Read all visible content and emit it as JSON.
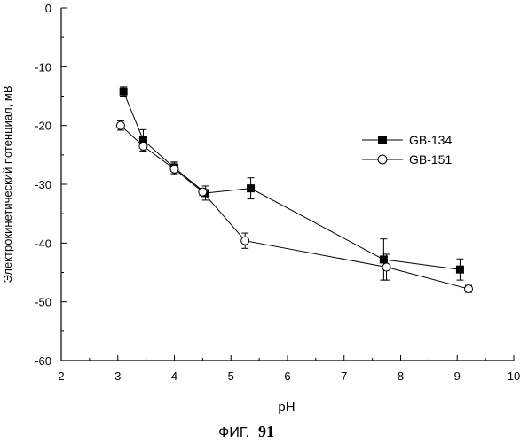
{
  "chart_data": {
    "type": "line",
    "xlabel": "pH",
    "ylabel": "Электрокинетический потенциал, мВ",
    "xlim": [
      2,
      10
    ],
    "ylim": [
      -60,
      0
    ],
    "xticks": [
      "2",
      "3",
      "4",
      "5",
      "6",
      "7",
      "8",
      "9",
      "10"
    ],
    "yticks": [
      "0",
      "-10",
      "-20",
      "-30",
      "-40",
      "-50",
      "-60"
    ],
    "legend_position": "right",
    "series": [
      {
        "name": "GB-134",
        "marker": "filled-square",
        "x": [
          3.1,
          3.45,
          4.0,
          4.55,
          5.35,
          7.7,
          9.05
        ],
        "y": [
          -14.2,
          -22.5,
          -27.2,
          -31.5,
          -30.7,
          -42.8,
          -44.5
        ],
        "err": [
          0.8,
          1.8,
          1.0,
          1.2,
          1.8,
          3.5,
          1.8
        ]
      },
      {
        "name": "GB-151",
        "marker": "open-circle",
        "x": [
          3.05,
          3.45,
          4.0,
          4.5,
          5.25,
          7.75,
          9.2
        ],
        "y": [
          -20.0,
          -23.5,
          -27.4,
          -31.3,
          -39.6,
          -44.1,
          -47.8
        ],
        "err": [
          0.8,
          0.9,
          1.0,
          0.6,
          1.3,
          2.2,
          0.6
        ]
      }
    ]
  },
  "caption": {
    "prefix": "ФИГ.",
    "number": "91"
  }
}
